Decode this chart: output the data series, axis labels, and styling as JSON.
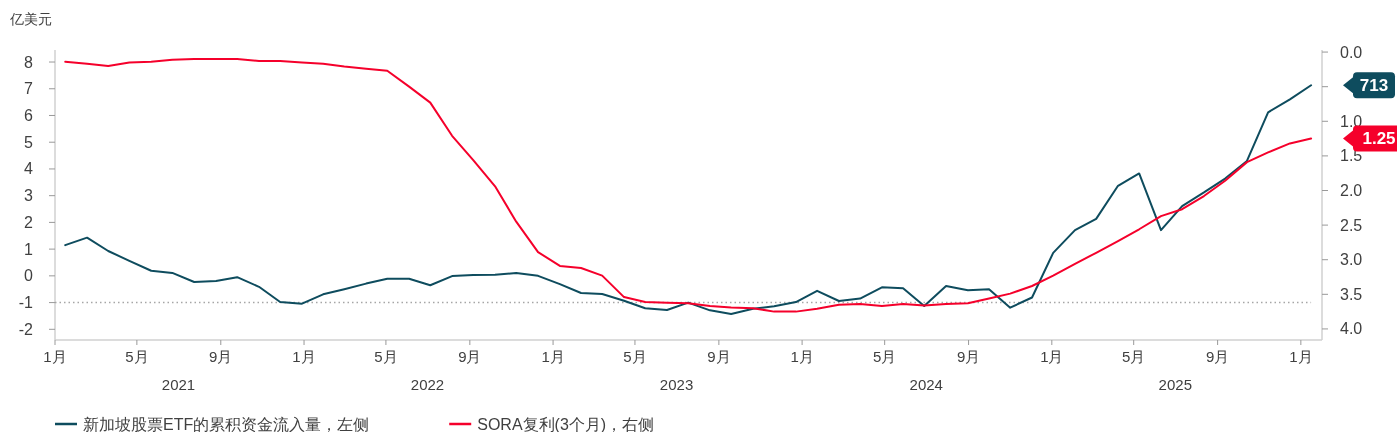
{
  "chart_data": {
    "type": "line",
    "ylabel": "亿美元",
    "x": [
      "2021-01-16",
      "2021-02-17",
      "2021-03-20",
      "2021-04-20",
      "2021-05-22",
      "2021-06-22",
      "2021-07-24",
      "2021-08-25",
      "2021-09-25",
      "2021-10-27",
      "2021-11-27",
      "2021-12-29",
      "2022-01-29",
      "2022-03-01",
      "2022-04-02",
      "2022-05-03",
      "2022-06-04",
      "2022-07-05",
      "2022-08-06",
      "2022-09-06",
      "2022-10-08",
      "2022-11-08",
      "2022-12-10",
      "2023-01-11",
      "2023-02-11",
      "2023-03-14",
      "2023-04-15",
      "2023-05-16",
      "2023-06-17",
      "2023-07-18",
      "2023-08-19",
      "2023-09-19",
      "2023-10-21",
      "2023-11-21",
      "2023-12-23",
      "2024-01-23",
      "2024-02-24",
      "2024-03-26",
      "2024-04-27",
      "2024-05-28",
      "2024-06-28",
      "2024-07-30",
      "2024-08-31",
      "2024-10-01",
      "2024-11-01",
      "2024-12-03",
      "2025-01-03",
      "2025-02-04",
      "2025-03-07",
      "2025-04-08",
      "2025-05-09",
      "2025-06-10",
      "2025-07-11",
      "2025-08-12",
      "2025-09-12",
      "2025-10-14",
      "2025-11-14",
      "2025-12-16",
      "2026-01-16"
    ],
    "xlim": [
      "2021-01-01",
      "2026-02-01"
    ],
    "xticks": [
      {
        "value": "2021-01-01",
        "label": "1月"
      },
      {
        "value": "2021-05-01",
        "label": "5月"
      },
      {
        "value": "2021-09-01",
        "label": "9月"
      },
      {
        "value": "2022-01-01",
        "label": "1月"
      },
      {
        "value": "2022-05-01",
        "label": "5月"
      },
      {
        "value": "2022-09-01",
        "label": "9月"
      },
      {
        "value": "2023-01-01",
        "label": "1月"
      },
      {
        "value": "2023-05-01",
        "label": "5月"
      },
      {
        "value": "2023-09-01",
        "label": "9月"
      },
      {
        "value": "2024-01-01",
        "label": "1月"
      },
      {
        "value": "2024-05-01",
        "label": "5月"
      },
      {
        "value": "2024-09-01",
        "label": "9月"
      },
      {
        "value": "2025-01-01",
        "label": "1月"
      },
      {
        "value": "2025-05-01",
        "label": "5月"
      },
      {
        "value": "2025-09-01",
        "label": "9月"
      },
      {
        "value": "2026-01-01",
        "label": "1月"
      }
    ],
    "ylim": [
      -2.4,
      8.45
    ],
    "yticks": [
      -2,
      -1,
      0,
      1,
      2,
      3,
      4,
      5,
      6,
      7,
      8
    ],
    "y2lim": [
      4.16,
      -0.03
    ],
    "y2ticks": [
      {
        "value": 0,
        "label": "0.0"
      },
      {
        "value": 0.5,
        "label": null
      },
      {
        "value": 1,
        "label": "1.0"
      },
      {
        "value": 1.5,
        "label": "1.5"
      },
      {
        "value": 2,
        "label": "2.0"
      },
      {
        "value": 2.5,
        "label": "2.5"
      },
      {
        "value": 3,
        "label": "3.0"
      },
      {
        "value": 3.5,
        "label": "3.5"
      },
      {
        "value": 4,
        "label": "4.0"
      }
    ],
    "series": [
      {
        "name": "新加坡股票ETF的累积资金流入量，左侧",
        "color": "#0e4c5e",
        "values": [
          1.15,
          1.43,
          0.93,
          0.56,
          0.19,
          0.11,
          -0.23,
          -0.19,
          -0.05,
          -0.41,
          -0.98,
          -1.04,
          -0.69,
          -0.5,
          -0.29,
          -0.11,
          -0.11,
          -0.35,
          -0.01,
          0.03,
          0.04,
          0.11,
          0.0,
          -0.31,
          -0.64,
          -0.68,
          -0.93,
          -1.21,
          -1.28,
          -1.0,
          -1.29,
          -1.43,
          -1.23,
          -1.14,
          -0.98,
          -0.56,
          -0.94,
          -0.85,
          -0.43,
          -0.46,
          -1.13,
          -0.38,
          -0.54,
          -0.5,
          -1.19,
          -0.81,
          0.86,
          1.71,
          2.13,
          3.37,
          3.83,
          1.71,
          2.61,
          3.12,
          3.64,
          4.3,
          6.12,
          6.6,
          7.13
        ]
      },
      {
        "name": "SORA复利(3个月)，右侧",
        "color": "#f5002b",
        "axis": "y2",
        "values": [
          0.14,
          0.17,
          0.2,
          0.15,
          0.14,
          0.11,
          0.1,
          0.1,
          0.1,
          0.13,
          0.13,
          0.15,
          0.17,
          0.21,
          0.24,
          0.27,
          0.5,
          0.73,
          1.21,
          1.56,
          1.94,
          2.45,
          2.89,
          3.09,
          3.12,
          3.23,
          3.54,
          3.61,
          3.62,
          3.63,
          3.67,
          3.69,
          3.7,
          3.75,
          3.75,
          3.71,
          3.65,
          3.64,
          3.67,
          3.64,
          3.66,
          3.64,
          3.63,
          3.56,
          3.49,
          3.38,
          3.23,
          3.06,
          2.9,
          2.73,
          2.56,
          2.37,
          2.27,
          2.08,
          1.86,
          1.59,
          1.45,
          1.32,
          1.25
        ]
      }
    ],
    "ref_lines": [
      {
        "axis": "y",
        "value": -1,
        "color": "#a6a6a6",
        "line_style": "dotted"
      }
    ],
    "annotations": [
      "2021",
      "2022",
      "2023",
      "2024",
      "2025",
      "713",
      "1.25"
    ],
    "legend": "bottom left"
  }
}
